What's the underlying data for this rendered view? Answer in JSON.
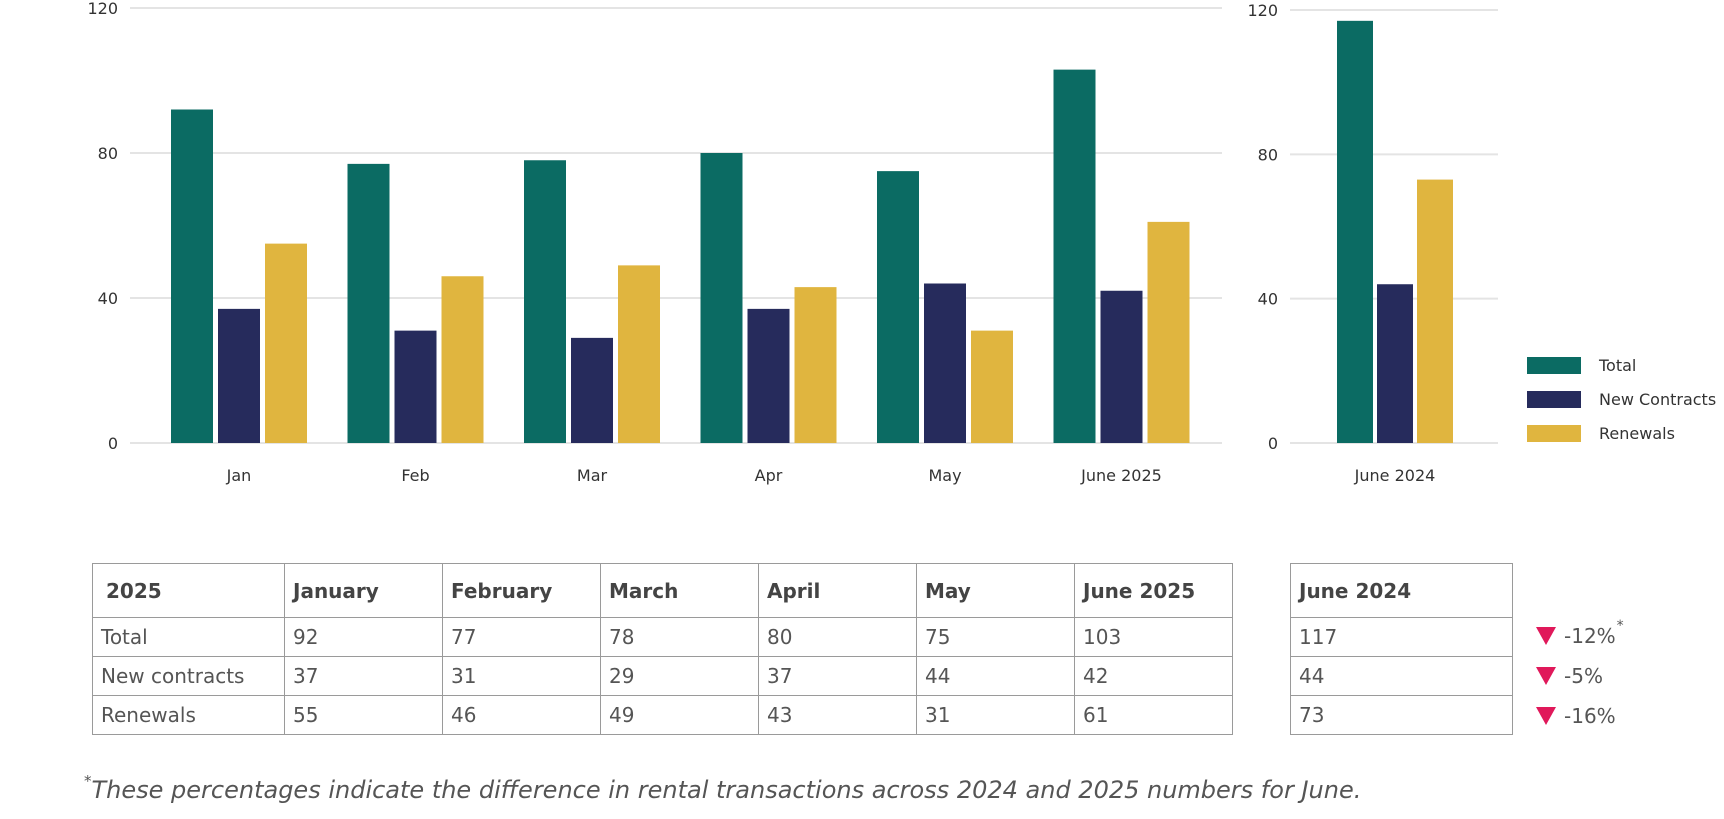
{
  "chart_data": [
    {
      "type": "bar",
      "categories": [
        "Jan",
        "Feb",
        "Mar",
        "Apr",
        "May",
        "June 2025"
      ],
      "series": [
        {
          "name": "Total",
          "values": [
            92,
            77,
            78,
            80,
            75,
            103
          ]
        },
        {
          "name": "New Contracts",
          "values": [
            37,
            31,
            29,
            37,
            44,
            42
          ]
        },
        {
          "name": "Renewals",
          "values": [
            55,
            46,
            49,
            43,
            31,
            61
          ]
        }
      ],
      "ylim": [
        0,
        120
      ],
      "yticks": [
        "0",
        "40",
        "80",
        "120"
      ],
      "grid": true
    },
    {
      "type": "bar",
      "categories": [
        "June 2024"
      ],
      "series": [
        {
          "name": "Total",
          "values": [
            117
          ]
        },
        {
          "name": "New Contracts",
          "values": [
            44
          ]
        },
        {
          "name": "Renewals",
          "values": [
            73
          ]
        }
      ],
      "ylim": [
        0,
        120
      ],
      "yticks": [
        "0",
        "40",
        "80",
        "120"
      ],
      "grid": true,
      "legend": "right"
    }
  ],
  "colors": {
    "Total": "#0b6b63",
    "New Contracts": "#262b5c",
    "Renewals": "#e0b53f",
    "down_arrow": "#e0185a"
  },
  "legend": [
    "Total",
    "New Contracts",
    "Renewals"
  ],
  "table_2025": {
    "headers": [
      "2025",
      "January",
      "February",
      "March",
      "April",
      "May",
      "June 2025"
    ],
    "rows": [
      {
        "label": "Total",
        "values": [
          "92",
          "77",
          "78",
          "80",
          "75",
          "103"
        ]
      },
      {
        "label": "New contracts",
        "values": [
          "37",
          "31",
          "29",
          "37",
          "44",
          "42"
        ]
      },
      {
        "label": "Renewals",
        "values": [
          "55",
          "46",
          "49",
          "43",
          "31",
          "61"
        ]
      }
    ]
  },
  "table_2024": {
    "header": "June 2024",
    "values": [
      "117",
      "44",
      "73"
    ]
  },
  "changes": [
    "-12%",
    "-5%",
    "-16%"
  ],
  "change_marker": "*",
  "footnote_marker": "*",
  "footnote": "These percentages indicate the difference in rental transactions across 2024 and 2025 numbers for June."
}
